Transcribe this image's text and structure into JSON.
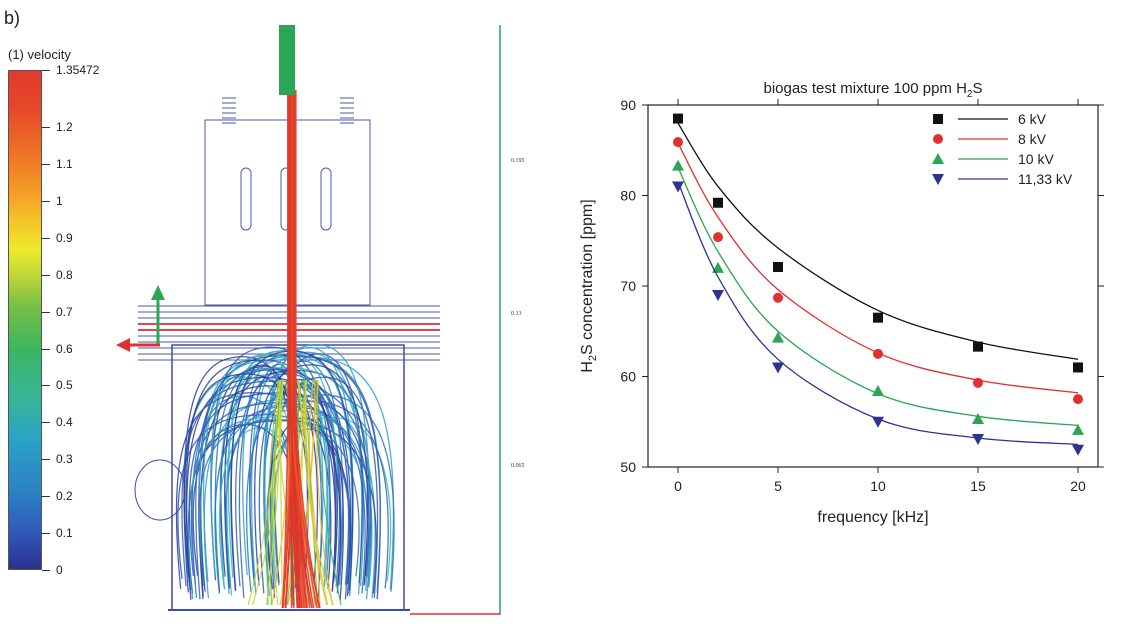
{
  "panel_label": "b)",
  "simulation": {
    "legend_title": "(1) velocity",
    "colorbar_ticks": [
      "1.35472",
      "1.2",
      "1.1",
      "1",
      "0.9",
      "0.8",
      "0.7",
      "0.6",
      "0.5",
      "0.4",
      "0.3",
      "0.2",
      "0.1",
      "0"
    ],
    "scale_ticks": [
      "0.195",
      "0.13",
      "0.065"
    ]
  },
  "chart_data": {
    "type": "scatter",
    "title_prefix": "biogas test mixture 100 ppm H",
    "title_sub": "2",
    "title_suffix": "S",
    "xlabel": "frequency [kHz]",
    "ylabel_prefix": "H",
    "ylabel_sub": "2",
    "ylabel_suffix": "S concentration [ppm]",
    "xlim": [
      -1.5,
      21
    ],
    "ylim": [
      50,
      90
    ],
    "xticks": [
      0,
      5,
      10,
      15,
      20
    ],
    "yticks": [
      50,
      60,
      70,
      80,
      90
    ],
    "legend_position": "top-right",
    "x": [
      0,
      2,
      5,
      10,
      15,
      20
    ],
    "series": [
      {
        "name": "6 kV",
        "marker": "square",
        "color": "#111111",
        "values": [
          88.5,
          79.2,
          72.1,
          66.5,
          63.3,
          61.0
        ],
        "fit": [
          88.0,
          81.0,
          74.2,
          67.3,
          63.8,
          61.9
        ]
      },
      {
        "name": "8 kV",
        "marker": "circle",
        "color": "#e0312f",
        "values": [
          85.9,
          75.4,
          68.7,
          62.5,
          59.3,
          57.5
        ],
        "fit": [
          85.8,
          77.6,
          69.6,
          62.6,
          59.6,
          58.2
        ]
      },
      {
        "name": "10 kV",
        "marker": "triangle-up",
        "color": "#2aa654",
        "values": [
          83.3,
          72.0,
          64.3,
          58.4,
          55.3,
          54.1
        ],
        "fit": [
          83.1,
          73.8,
          65.0,
          58.1,
          55.6,
          54.6
        ]
      },
      {
        "name": "11,33 kV",
        "marker": "triangle-down",
        "color": "#2d3393",
        "values": [
          81.0,
          69.0,
          61.0,
          55.0,
          53.1,
          51.9
        ],
        "fit": [
          81.5,
          71.0,
          61.9,
          55.3,
          53.2,
          52.5
        ]
      }
    ]
  }
}
